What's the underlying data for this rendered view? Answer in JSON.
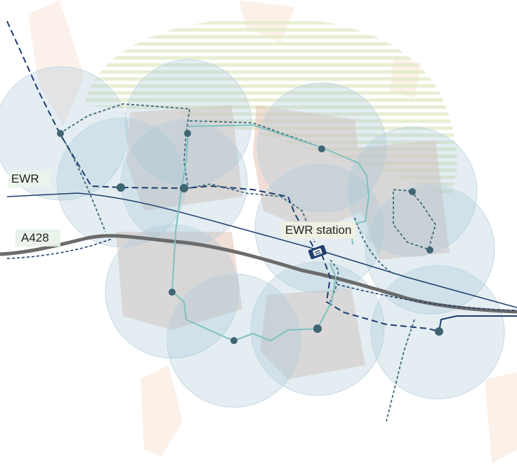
{
  "labels": {
    "rail_line": "EWR",
    "road": "A428",
    "station": "EWR station"
  },
  "icons": {
    "station": "train-station-icon",
    "stop": "stop-marker-icon"
  },
  "colors": {
    "rail": "#1f3d6e",
    "road": "#6b6b6b",
    "transit_dark": "#3d6a78",
    "transit_teal": "#7fc1bd",
    "catchment": "#a7c8d8",
    "stop_marker": "#3f6572",
    "development": "#e8c6b8",
    "green_area": "#e4edc9"
  }
}
